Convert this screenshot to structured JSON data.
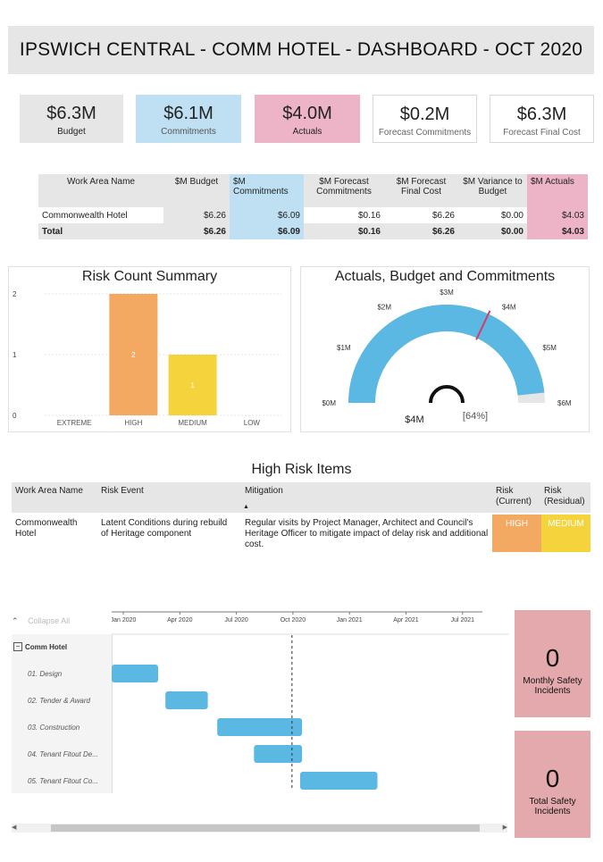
{
  "title": "IPSWICH CENTRAL - COMM HOTEL - DASHBOARD - OCT 2020",
  "kpis": [
    {
      "value": "$6.3M",
      "label": "Budget"
    },
    {
      "value": "$6.1M",
      "label": "Commitments"
    },
    {
      "value": "$4.0M",
      "label": "Actuals"
    },
    {
      "value": "$0.2M",
      "label": "Forecast Commitments"
    },
    {
      "value": "$6.3M",
      "label": "Forecast Final Cost"
    }
  ],
  "summary_table": {
    "headers": [
      "Work Area Name",
      "$M Budget",
      "$M Commitments",
      "$M Forecast Commitments",
      "$M Forecast Final Cost",
      "$M Variance to Budget",
      "$M Actuals"
    ],
    "rows": [
      [
        "Commonwealth Hotel",
        "$6.26",
        "$6.09",
        "$0.16",
        "$6.26",
        "$0.00",
        "$4.03"
      ],
      [
        "Total",
        "$6.26",
        "$6.09",
        "$0.16",
        "$6.26",
        "$0.00",
        "$4.03"
      ]
    ]
  },
  "risk_chart": {
    "title": "Risk Count Summary",
    "chart_data": {
      "type": "bar",
      "categories": [
        "EXTREME",
        "HIGH",
        "MEDIUM",
        "LOW"
      ],
      "values": [
        0,
        2,
        1,
        0
      ],
      "data_labels": [
        "",
        "2",
        "1",
        ""
      ],
      "colors": [
        "#f4a962",
        "#f4a962",
        "#f5d33c",
        "#f5d33c"
      ],
      "ylim": [
        0,
        2
      ],
      "yticks": [
        "0",
        "1",
        "2"
      ]
    }
  },
  "gauge": {
    "title": "Actuals, Budget and Commitments",
    "value_label": "$4M",
    "percent_label": "[64%]",
    "ticks": [
      "$0M",
      "$1M",
      "$2M",
      "$3M",
      "$4M",
      "$5M",
      "$6M"
    ],
    "min": 0,
    "max": 6.3,
    "fill_value": 6.09,
    "target_value": 4.03,
    "fill_color": "#5bb8e2",
    "target_color": "#d63a6b"
  },
  "high_risk": {
    "title": "High Risk Items",
    "headers": {
      "work_area": "Work Area Name",
      "event": "Risk Event",
      "mitigation": "Mitigation",
      "current": "Risk (Current)",
      "residual": "Risk (Residual)"
    },
    "sort_glyph": "▲",
    "row": {
      "work_area": "Commonwealth Hotel",
      "event": "Latent Conditions during rebuild of Heritage component",
      "mitigation": "Regular visits by Project Manager, Architect and Council's Heritage Officer to mitigate impact of delay risk and additional cost.",
      "current": "HIGH",
      "residual": "MEDIUM"
    },
    "colors": {
      "high": "#f4a962",
      "medium": "#f5d33c"
    }
  },
  "gantt": {
    "collapse_label": "Collapse All",
    "group_label": "Comm Hotel",
    "axis_labels": [
      "Jan 2020",
      "Apr 2020",
      "Jul 2020",
      "Oct 2020",
      "Jan 2021",
      "Apr 2021",
      "Jul 2021"
    ],
    "tasks": [
      {
        "label": "01. Design",
        "start": 0,
        "end": 1.85
      },
      {
        "label": "02. Tender & Award",
        "start": 2.85,
        "end": 5.1
      },
      {
        "label": "03. Construction",
        "start": 5.6,
        "end": 10.1
      },
      {
        "label": "04. Tenant Fitout De...",
        "start": 7.55,
        "end": 10.1
      },
      {
        "label": "05. Tenant Fitout Co...",
        "start": 10.0,
        "end": 14.1
      }
    ],
    "today_marker": 8.95
  },
  "safety": [
    {
      "value": "0",
      "label": "Monthly Safety Incidents"
    },
    {
      "value": "0",
      "label": "Total Safety Incidents"
    }
  ]
}
